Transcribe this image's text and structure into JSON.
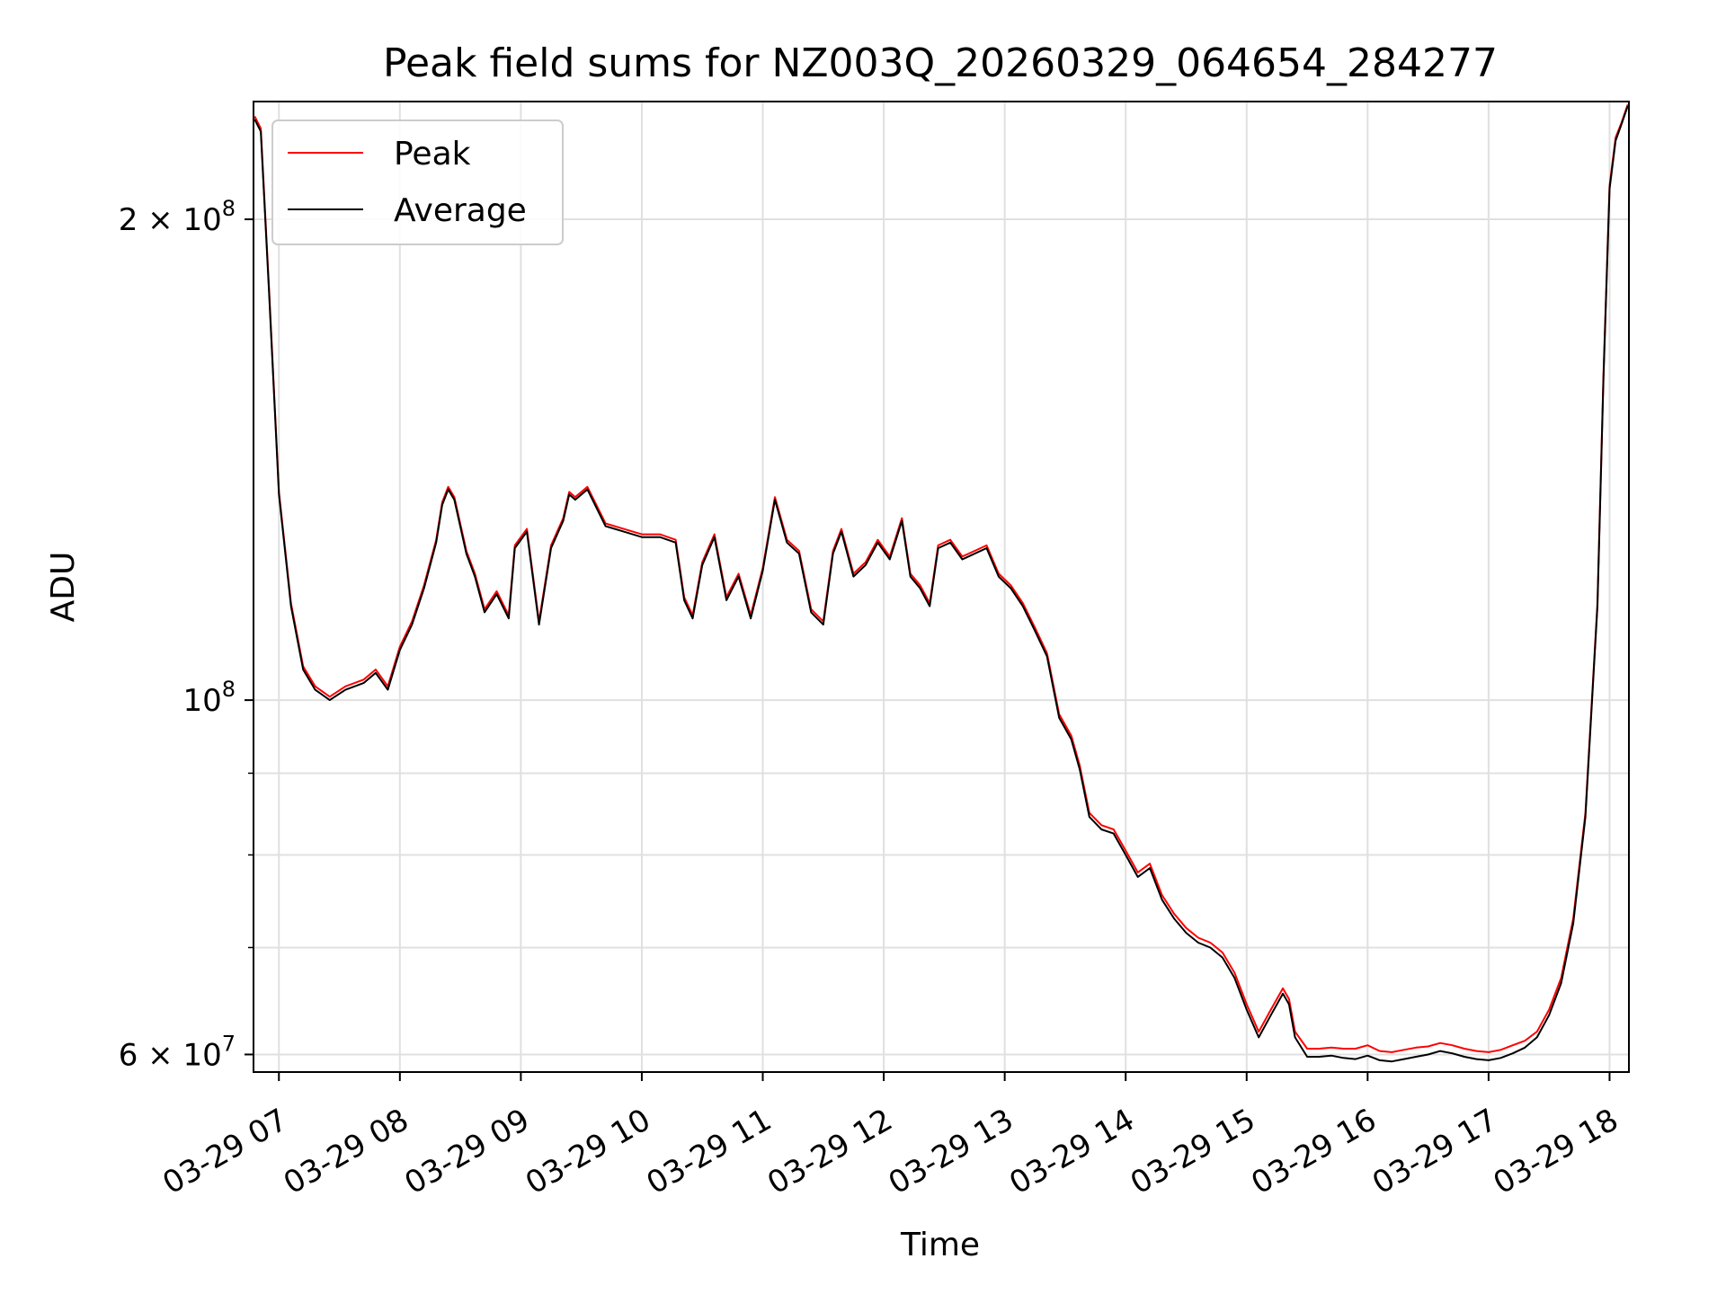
{
  "chart_data": {
    "type": "line",
    "title": "Peak field sums for NZ003Q_20260329_064654_284277",
    "xlabel": "Time",
    "ylabel": "ADU",
    "x_tick_labels": [
      "03-29 07",
      "03-29 08",
      "03-29 09",
      "03-29 10",
      "03-29 11",
      "03-29 12",
      "03-29 13",
      "03-29 14",
      "03-29 15",
      "03-29 16",
      "03-29 17",
      "03-29 18"
    ],
    "x_ticks_hours": [
      7,
      8,
      9,
      10,
      11,
      12,
      13,
      14,
      15,
      16,
      17,
      18
    ],
    "xlim_hours": [
      6.79,
      18.16
    ],
    "y_scale": "log",
    "ylim": [
      58500000,
      237000000
    ],
    "y_major_ticks": [
      {
        "value": 60000000,
        "base": "6 × 10",
        "exp": "7"
      },
      {
        "value": 100000000,
        "base": "10",
        "exp": "8"
      },
      {
        "value": 200000000,
        "base": "2 × 10",
        "exp": "8"
      }
    ],
    "y_minor_ticks": [
      70000000,
      80000000,
      90000000
    ],
    "grid": true,
    "legend": {
      "placement": "upper-left",
      "entries": [
        "Peak",
        "Average"
      ]
    },
    "series": [
      {
        "name": "Peak",
        "color": "#ff0000",
        "t": [
          6.8,
          6.85,
          6.92,
          7.0,
          7.1,
          7.2,
          7.3,
          7.42,
          7.55,
          7.7,
          7.8,
          7.9,
          8.0,
          8.1,
          8.2,
          8.3,
          8.35,
          8.4,
          8.45,
          8.55,
          8.62,
          8.7,
          8.8,
          8.9,
          8.95,
          9.05,
          9.15,
          9.25,
          9.35,
          9.4,
          9.45,
          9.55,
          9.7,
          9.85,
          10.0,
          10.15,
          10.28,
          10.35,
          10.42,
          10.5,
          10.6,
          10.7,
          10.8,
          10.9,
          11.0,
          11.1,
          11.2,
          11.3,
          11.4,
          11.5,
          11.58,
          11.65,
          11.75,
          11.85,
          11.95,
          12.05,
          12.15,
          12.22,
          12.3,
          12.38,
          12.45,
          12.55,
          12.65,
          12.75,
          12.85,
          12.95,
          13.05,
          13.15,
          13.25,
          13.35,
          13.45,
          13.55,
          13.62,
          13.7,
          13.8,
          13.9,
          14.0,
          14.1,
          14.2,
          14.3,
          14.4,
          14.5,
          14.6,
          14.7,
          14.8,
          14.9,
          15.0,
          15.1,
          15.2,
          15.3,
          15.35,
          15.4,
          15.5,
          15.6,
          15.7,
          15.8,
          15.9,
          16.0,
          16.1,
          16.2,
          16.3,
          16.4,
          16.5,
          16.6,
          16.7,
          16.8,
          16.9,
          17.0,
          17.1,
          17.2,
          17.3,
          17.4,
          17.5,
          17.6,
          17.7,
          17.8,
          17.9,
          17.95,
          18.0,
          18.05,
          18.1,
          18.15
        ],
        "values": [
          232000000,
          228000000,
          180000000,
          135000000,
          115000000,
          105000000,
          102000000,
          100500000,
          102000000,
          103000000,
          104500000,
          102000000,
          108000000,
          112000000,
          118000000,
          126000000,
          133000000,
          136000000,
          134000000,
          124000000,
          120000000,
          114000000,
          117000000,
          113000000,
          125000000,
          128000000,
          112000000,
          125000000,
          130000000,
          135000000,
          134000000,
          136000000,
          129000000,
          128000000,
          127000000,
          127000000,
          126000000,
          116000000,
          113000000,
          122000000,
          127000000,
          116000000,
          120000000,
          113000000,
          121000000,
          134000000,
          126000000,
          124000000,
          114000000,
          112000000,
          124000000,
          128000000,
          120000000,
          122000000,
          126000000,
          123000000,
          130000000,
          120000000,
          118000000,
          115000000,
          125000000,
          126000000,
          123000000,
          124000000,
          125000000,
          120000000,
          118000000,
          115000000,
          111000000,
          107000000,
          98000000,
          95000000,
          91000000,
          85000000,
          83500000,
          83000000,
          80500000,
          78000000,
          79000000,
          75500000,
          73500000,
          72000000,
          71000000,
          70500000,
          69500000,
          67500000,
          64500000,
          62000000,
          64000000,
          66000000,
          65000000,
          62000000,
          60500000,
          60500000,
          60600000,
          60500000,
          60500000,
          60800000,
          60300000,
          60200000,
          60400000,
          60600000,
          60700000,
          61000000,
          60800000,
          60500000,
          60300000,
          60200000,
          60400000,
          60800000,
          61200000,
          62000000,
          64000000,
          67000000,
          73000000,
          85000000,
          115000000,
          160000000,
          210000000,
          225000000,
          230000000,
          236000000
        ]
      },
      {
        "name": "Average",
        "color": "#000000",
        "t": [
          6.8,
          6.85,
          6.92,
          7.0,
          7.1,
          7.2,
          7.3,
          7.42,
          7.55,
          7.7,
          7.8,
          7.9,
          8.0,
          8.1,
          8.2,
          8.3,
          8.35,
          8.4,
          8.45,
          8.55,
          8.62,
          8.7,
          8.8,
          8.9,
          8.95,
          9.05,
          9.15,
          9.25,
          9.35,
          9.4,
          9.45,
          9.55,
          9.7,
          9.85,
          10.0,
          10.15,
          10.28,
          10.35,
          10.42,
          10.5,
          10.6,
          10.7,
          10.8,
          10.9,
          11.0,
          11.1,
          11.2,
          11.3,
          11.4,
          11.5,
          11.58,
          11.65,
          11.75,
          11.85,
          11.95,
          12.05,
          12.15,
          12.22,
          12.3,
          12.38,
          12.45,
          12.55,
          12.65,
          12.75,
          12.85,
          12.95,
          13.05,
          13.15,
          13.25,
          13.35,
          13.45,
          13.55,
          13.62,
          13.7,
          13.8,
          13.9,
          14.0,
          14.1,
          14.2,
          14.3,
          14.4,
          14.5,
          14.6,
          14.7,
          14.8,
          14.9,
          15.0,
          15.1,
          15.2,
          15.3,
          15.35,
          15.4,
          15.5,
          15.6,
          15.7,
          15.8,
          15.9,
          16.0,
          16.1,
          16.2,
          16.3,
          16.4,
          16.5,
          16.6,
          16.7,
          16.8,
          16.9,
          17.0,
          17.1,
          17.2,
          17.3,
          17.4,
          17.5,
          17.6,
          17.7,
          17.8,
          17.9,
          17.95,
          18.0,
          18.05,
          18.1,
          18.15
        ],
        "values": [
          231000000,
          227000000,
          179000000,
          134500000,
          114500000,
          104500000,
          101500000,
          100000000,
          101500000,
          102500000,
          104000000,
          101500000,
          107500000,
          111500000,
          117500000,
          125500000,
          132500000,
          135500000,
          133500000,
          123500000,
          119500000,
          113500000,
          116500000,
          112500000,
          124500000,
          127500000,
          111500000,
          124500000,
          129500000,
          134500000,
          133500000,
          135500000,
          128500000,
          127500000,
          126500000,
          126500000,
          125500000,
          115500000,
          112500000,
          121500000,
          126500000,
          115500000,
          119500000,
          112500000,
          120500000,
          133500000,
          125500000,
          123500000,
          113500000,
          111500000,
          123500000,
          127500000,
          119500000,
          121500000,
          125500000,
          122500000,
          129500000,
          119500000,
          117500000,
          114500000,
          124500000,
          125500000,
          122500000,
          123500000,
          124500000,
          119500000,
          117500000,
          114500000,
          110500000,
          106500000,
          97500000,
          94500000,
          90500000,
          84500000,
          83000000,
          82500000,
          80000000,
          77500000,
          78500000,
          75000000,
          73000000,
          71500000,
          70500000,
          70000000,
          69000000,
          67000000,
          64000000,
          61500000,
          63500000,
          65500000,
          64500000,
          61500000,
          59800000,
          59800000,
          59900000,
          59700000,
          59600000,
          59900000,
          59500000,
          59400000,
          59600000,
          59800000,
          60000000,
          60300000,
          60100000,
          59800000,
          59600000,
          59500000,
          59700000,
          60100000,
          60600000,
          61500000,
          63500000,
          66500000,
          72500000,
          84500000,
          114500000,
          159000000,
          209000000,
          224000000,
          229500000,
          235500000
        ]
      }
    ]
  }
}
